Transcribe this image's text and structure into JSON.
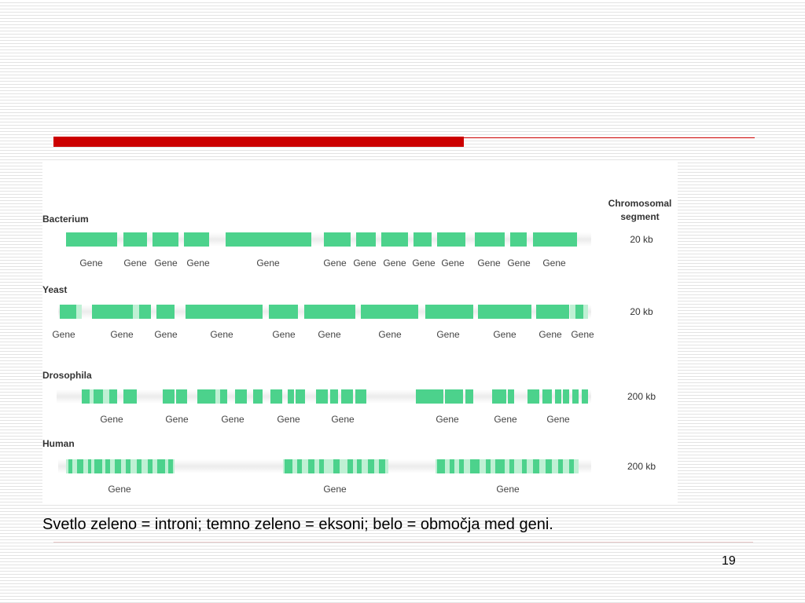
{
  "slide": {
    "header_label": "Chromosomal\nsegment",
    "caption": "Svetlo zeleno = introni; temno zeleno = eksoni; belo = območja med geni.",
    "page_number": "19",
    "colors": {
      "accent": "#cc0000",
      "exon": "#4cd28c",
      "intron": "#bff0d4",
      "intergenic": "#ffffff"
    }
  },
  "rows": [
    {
      "organism": "Bacterium",
      "segment_size": "20 kb",
      "gene_labels": [
        "Gene",
        "Gene",
        "Gene",
        "Gene",
        "Gene",
        "Gene",
        "Gene",
        "Gene",
        "Gene",
        "Gene",
        "Gene",
        "Gene",
        "Gene"
      ]
    },
    {
      "organism": "Yeast",
      "segment_size": "20 kb",
      "gene_labels": [
        "Gene",
        "Gene",
        "Gene",
        "Gene",
        "Gene",
        "Gene",
        "Gene",
        "Gene",
        "Gene",
        "Gene",
        "Gene"
      ]
    },
    {
      "organism": "Drosophila",
      "segment_size": "200 kb",
      "gene_labels": [
        "Gene",
        "Gene",
        "Gene",
        "Gene",
        "Gene",
        "Gene",
        "Gene",
        "Gene"
      ]
    },
    {
      "organism": "Human",
      "segment_size": "200 kb",
      "gene_labels": [
        "Gene",
        "Gene",
        "Gene"
      ]
    }
  ]
}
